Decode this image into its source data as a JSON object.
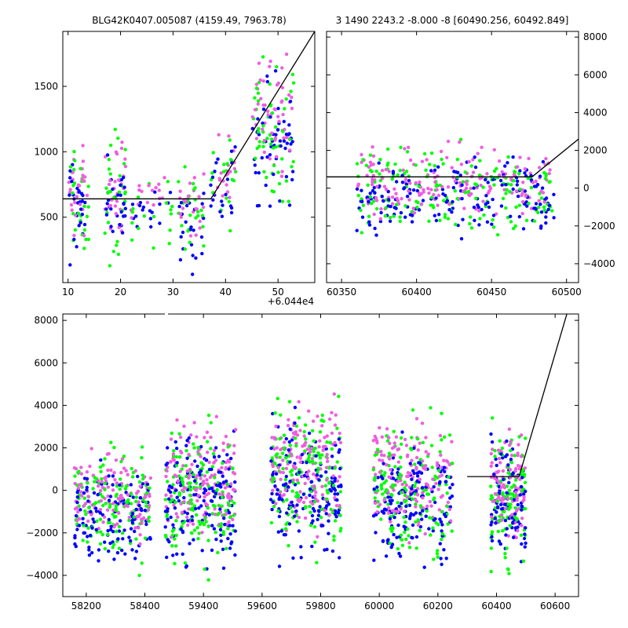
{
  "colors": {
    "green": "#00ff00",
    "blue": "#0000ff",
    "pink": "#ee5ee0",
    "model": "#000000"
  },
  "chart_data": [
    {
      "type": "scatter",
      "title": "BLG42K0407.005087 (4159.49, 7963.78)",
      "offset_label": "+6.044e4",
      "xlim": [
        9,
        57
      ],
      "ylim": [
        0,
        1920
      ],
      "xticks": [
        10,
        20,
        30,
        40,
        50
      ],
      "yticks": [
        500,
        1000,
        1500
      ],
      "clusters": [
        {
          "x": [
            10,
            14
          ],
          "y": [
            0,
            1200
          ],
          "n": 80
        },
        {
          "x": [
            17,
            21
          ],
          "y": [
            0,
            1300
          ],
          "n": 90
        },
        {
          "x": [
            22,
            30
          ],
          "y": [
            200,
            1000
          ],
          "n": 50
        },
        {
          "x": [
            31,
            36
          ],
          "y": [
            0,
            1000
          ],
          "n": 70
        },
        {
          "x": [
            37,
            42
          ],
          "y": [
            300,
            1300
          ],
          "n": 60
        },
        {
          "x": [
            45,
            53
          ],
          "y": [
            400,
            1920
          ],
          "n": 160
        }
      ],
      "model": [
        [
          9,
          640
        ],
        [
          37.2,
          640
        ],
        [
          57,
          1920
        ]
      ]
    },
    {
      "type": "scatter",
      "title": "3 1490 2243.2 -8.000 -8 [60490.256, 60492.849]",
      "xlim": [
        60340,
        60508
      ],
      "ylim": [
        -5000,
        8300
      ],
      "xticks": [
        60350,
        60400,
        60450,
        60500
      ],
      "yticks": [
        -4000,
        -2000,
        0,
        2000,
        4000,
        6000,
        8000
      ],
      "clusters": [
        {
          "x": [
            60360,
            60492
          ],
          "y": [
            -3500,
            3000
          ],
          "n": 520
        }
      ],
      "model": [
        [
          60340,
          600
        ],
        [
          60477,
          600
        ],
        [
          60508,
          2600
        ]
      ]
    },
    {
      "type": "scatter",
      "xlim": [
        58120,
        60680
      ],
      "ylim": [
        -5000,
        8300
      ],
      "xticks": [
        58200,
        58400,
        59400,
        59600,
        59800,
        60000,
        60200,
        60400,
        60600
      ],
      "yticks": [
        -4000,
        -2000,
        0,
        2000,
        4000,
        6000,
        8000
      ],
      "break": {
        "after": 58450,
        "resume": 59250
      },
      "clusters": [
        {
          "x": [
            58160,
            58420
          ],
          "y": [
            -4500,
            3000
          ],
          "n": 380
        },
        {
          "x": [
            59270,
            59510
          ],
          "y": [
            -4800,
            4500
          ],
          "n": 460
        },
        {
          "x": [
            59630,
            59870
          ],
          "y": [
            -4500,
            5500
          ],
          "n": 460
        },
        {
          "x": [
            59980,
            60250
          ],
          "y": [
            -4800,
            4500
          ],
          "n": 460
        },
        {
          "x": [
            60380,
            60500
          ],
          "y": [
            -4500,
            4000
          ],
          "n": 300
        }
      ],
      "model": [
        [
          60300,
          650
        ],
        [
          60477,
          650
        ],
        [
          60640,
          8300
        ]
      ]
    }
  ]
}
